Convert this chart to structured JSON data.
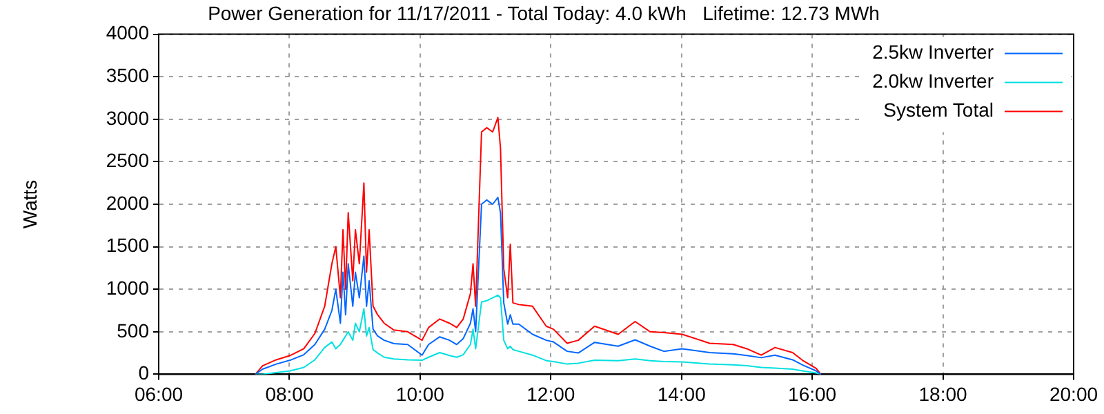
{
  "chart_data": {
    "type": "line",
    "title": "Power Generation for 11/17/2011 - Total Today: 4.0 kWh   Lifetime: 12.73 MWh",
    "ylabel": "Watts",
    "x": [
      7.48,
      7.59,
      7.8,
      8.01,
      8.22,
      8.39,
      8.54,
      8.65,
      8.71,
      8.78,
      8.82,
      8.86,
      8.9,
      8.97,
      9.01,
      9.07,
      9.14,
      9.18,
      9.22,
      9.28,
      9.35,
      9.45,
      9.6,
      9.81,
      10.03,
      10.13,
      10.3,
      10.45,
      10.56,
      10.66,
      10.77,
      10.81,
      10.85,
      10.94,
      11.02,
      11.11,
      11.19,
      11.23,
      11.28,
      11.34,
      11.38,
      11.42,
      11.51,
      11.72,
      11.93,
      12.04,
      12.25,
      12.42,
      12.67,
      13.03,
      13.29,
      13.52,
      13.73,
      14.01,
      14.43,
      14.79,
      15.0,
      15.22,
      15.43,
      15.7,
      15.85,
      16.06,
      16.13
    ],
    "series": [
      {
        "name": "2.5kw Inverter",
        "color": "#0066ff",
        "values": [
          0,
          60,
          120,
          165,
          230,
          350,
          530,
          750,
          1000,
          600,
          1200,
          700,
          1300,
          800,
          1200,
          900,
          1390,
          800,
          1100,
          530,
          450,
          400,
          360,
          350,
          225,
          350,
          440,
          400,
          350,
          420,
          600,
          770,
          500,
          2000,
          2050,
          2000,
          2080,
          1900,
          840,
          590,
          700,
          590,
          590,
          470,
          400,
          380,
          270,
          250,
          375,
          330,
          405,
          330,
          270,
          300,
          255,
          240,
          220,
          195,
          225,
          170,
          110,
          40,
          0
        ]
      },
      {
        "name": "2.0kw Inverter",
        "color": "#00e0e0",
        "values": [
          0,
          0,
          20,
          40,
          80,
          170,
          315,
          380,
          300,
          350,
          400,
          450,
          500,
          400,
          600,
          500,
          770,
          450,
          550,
          290,
          250,
          200,
          180,
          170,
          165,
          200,
          255,
          220,
          200,
          230,
          350,
          530,
          300,
          850,
          865,
          900,
          930,
          900,
          400,
          300,
          330,
          290,
          270,
          225,
          160,
          150,
          120,
          130,
          165,
          160,
          180,
          160,
          150,
          145,
          120,
          110,
          100,
          80,
          73,
          60,
          40,
          15,
          0
        ]
      },
      {
        "name": "System Total",
        "color": "#ff0000",
        "values": [
          0,
          100,
          170,
          220,
          300,
          480,
          800,
          1300,
          1500,
          900,
          1700,
          1000,
          1900,
          1100,
          1700,
          1300,
          2250,
          1200,
          1700,
          800,
          700,
          600,
          520,
          500,
          400,
          550,
          650,
          600,
          550,
          650,
          950,
          1300,
          800,
          2850,
          2900,
          2850,
          3020,
          2660,
          1240,
          900,
          1530,
          840,
          820,
          800,
          565,
          530,
          365,
          400,
          565,
          470,
          620,
          500,
          490,
          470,
          365,
          350,
          300,
          225,
          315,
          255,
          165,
          70,
          0
        ]
      }
    ],
    "xlim": [
      6,
      20
    ],
    "xticks": [
      {
        "value": 6,
        "label": "06:00"
      },
      {
        "value": 8,
        "label": "08:00"
      },
      {
        "value": 10,
        "label": "10:00"
      },
      {
        "value": 12,
        "label": "12:00"
      },
      {
        "value": 14,
        "label": "14:00"
      },
      {
        "value": 16,
        "label": "16:00"
      },
      {
        "value": 18,
        "label": "18:00"
      },
      {
        "value": 20,
        "label": "20:00"
      }
    ],
    "ylim": [
      0,
      4000
    ],
    "yticks": [
      0,
      500,
      1000,
      1500,
      2000,
      2500,
      3000,
      3500,
      4000
    ],
    "grid": true,
    "legend": "top right",
    "line_style": "solid"
  }
}
